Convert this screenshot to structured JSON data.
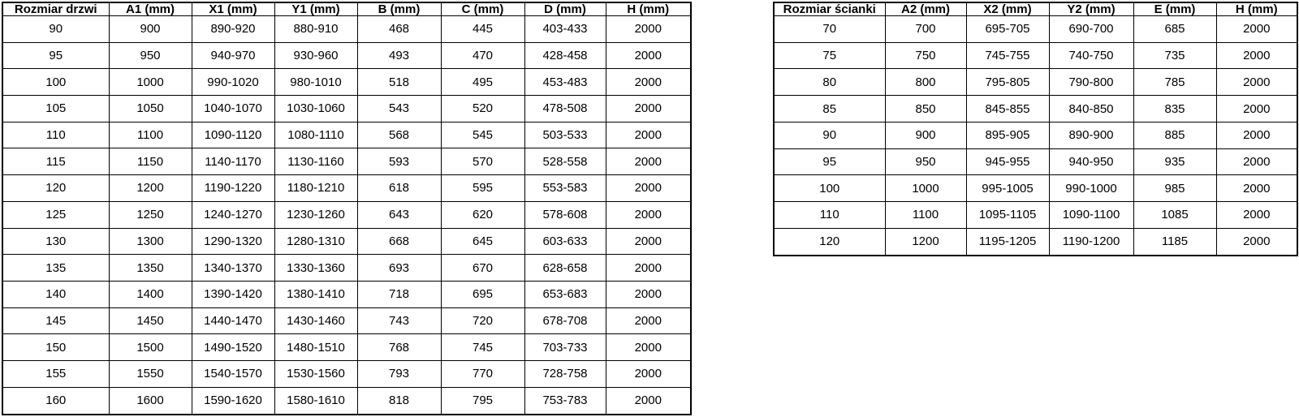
{
  "page": {
    "background_color": "#ffffff",
    "border_color": "#000000",
    "text_color": "#000000"
  },
  "tables": [
    {
      "name": "door-size-table",
      "headers": [
        "Rozmiar drzwi",
        "A1 (mm)",
        "X1 (mm)",
        "Y1 (mm)",
        "B (mm)",
        "C (mm)",
        "D (mm)",
        "H (mm)"
      ],
      "rows": [
        [
          "90",
          "900",
          "890-920",
          "880-910",
          "468",
          "445",
          "403-433",
          "2000"
        ],
        [
          "95",
          "950",
          "940-970",
          "930-960",
          "493",
          "470",
          "428-458",
          "2000"
        ],
        [
          "100",
          "1000",
          "990-1020",
          "980-1010",
          "518",
          "495",
          "453-483",
          "2000"
        ],
        [
          "105",
          "1050",
          "1040-1070",
          "1030-1060",
          "543",
          "520",
          "478-508",
          "2000"
        ],
        [
          "110",
          "1100",
          "1090-1120",
          "1080-1110",
          "568",
          "545",
          "503-533",
          "2000"
        ],
        [
          "115",
          "1150",
          "1140-1170",
          "1130-1160",
          "593",
          "570",
          "528-558",
          "2000"
        ],
        [
          "120",
          "1200",
          "1190-1220",
          "1180-1210",
          "618",
          "595",
          "553-583",
          "2000"
        ],
        [
          "125",
          "1250",
          "1240-1270",
          "1230-1260",
          "643",
          "620",
          "578-608",
          "2000"
        ],
        [
          "130",
          "1300",
          "1290-1320",
          "1280-1310",
          "668",
          "645",
          "603-633",
          "2000"
        ],
        [
          "135",
          "1350",
          "1340-1370",
          "1330-1360",
          "693",
          "670",
          "628-658",
          "2000"
        ],
        [
          "140",
          "1400",
          "1390-1420",
          "1380-1410",
          "718",
          "695",
          "653-683",
          "2000"
        ],
        [
          "145",
          "1450",
          "1440-1470",
          "1430-1460",
          "743",
          "720",
          "678-708",
          "2000"
        ],
        [
          "150",
          "1500",
          "1490-1520",
          "1480-1510",
          "768",
          "745",
          "703-733",
          "2000"
        ],
        [
          "155",
          "1550",
          "1540-1570",
          "1530-1560",
          "793",
          "770",
          "728-758",
          "2000"
        ],
        [
          "160",
          "1600",
          "1590-1620",
          "1580-1610",
          "818",
          "795",
          "753-783",
          "2000"
        ]
      ]
    },
    {
      "name": "wall-panel-size-table",
      "headers": [
        "Rozmiar ścianki",
        "A2 (mm)",
        "X2 (mm)",
        "Y2 (mm)",
        "E (mm)",
        "H (mm)"
      ],
      "rows": [
        [
          "70",
          "700",
          "695-705",
          "690-700",
          "685",
          "2000"
        ],
        [
          "75",
          "750",
          "745-755",
          "740-750",
          "735",
          "2000"
        ],
        [
          "80",
          "800",
          "795-805",
          "790-800",
          "785",
          "2000"
        ],
        [
          "85",
          "850",
          "845-855",
          "840-850",
          "835",
          "2000"
        ],
        [
          "90",
          "900",
          "895-905",
          "890-900",
          "885",
          "2000"
        ],
        [
          "95",
          "950",
          "945-955",
          "940-950",
          "935",
          "2000"
        ],
        [
          "100",
          "1000",
          "995-1005",
          "990-1000",
          "985",
          "2000"
        ],
        [
          "110",
          "1100",
          "1095-1105",
          "1090-1100",
          "1085",
          "2000"
        ],
        [
          "120",
          "1200",
          "1195-1205",
          "1190-1200",
          "1185",
          "2000"
        ]
      ]
    }
  ]
}
